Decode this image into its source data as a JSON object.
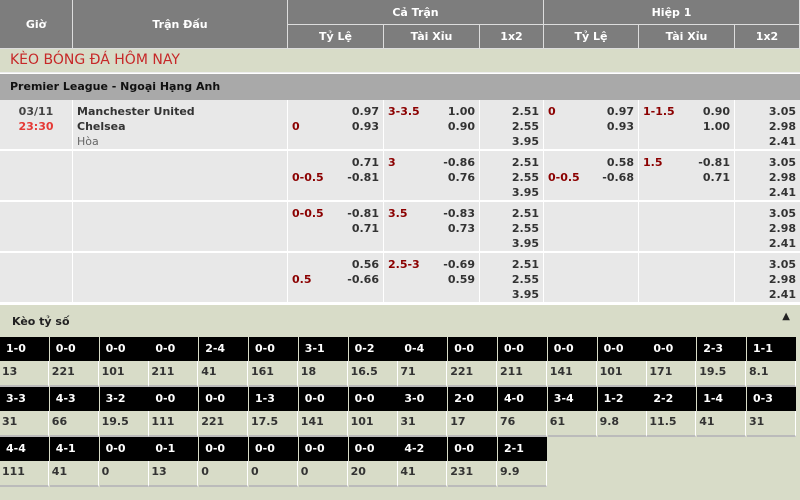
{
  "header": {
    "time": "Giờ",
    "match": "Trận Đấu",
    "full": "Cả Trận",
    "half": "Hiệp 1",
    "hdp": "Tỷ Lệ",
    "ou": "Tài Xỉu",
    "x12": "1x2"
  },
  "title": "KÈO BÓNG ĐÁ HÔM NAY",
  "league": "Premier League - Ngoại Hạng Anh",
  "match": {
    "date": "03/11",
    "time": "23:30",
    "home": "Manchester United",
    "away": "Chelsea",
    "draw": "Hòa"
  },
  "rows": [
    {
      "hdp_line": "0",
      "hdp_line_pos": 2,
      "hdp": [
        "0.97",
        "0.93"
      ],
      "ou_line": "3-3.5",
      "ou": [
        "1.00",
        "0.90"
      ],
      "x12": [
        "2.51",
        "2.55",
        "3.95"
      ],
      "h1_hdp_line": "0",
      "h1_hdp_line_pos": 1,
      "h1_hdp": [
        "0.97",
        "0.93"
      ],
      "h1_ou_line": "1-1.5",
      "h1_ou": [
        "0.90",
        "1.00"
      ],
      "h1_x12": [
        "3.05",
        "2.98",
        "2.41"
      ]
    },
    {
      "hdp_line": "0-0.5",
      "hdp_line_pos": 2,
      "hdp": [
        "0.71",
        "-0.81"
      ],
      "ou_line": "3",
      "ou": [
        "-0.86",
        "0.76"
      ],
      "x12": [
        "2.51",
        "2.55",
        "3.95"
      ],
      "h1_hdp_line": "0-0.5",
      "h1_hdp_line_pos": 2,
      "h1_hdp": [
        "0.58",
        "-0.68"
      ],
      "h1_ou_line": "1.5",
      "h1_ou": [
        "-0.81",
        "0.71"
      ],
      "h1_x12": [
        "3.05",
        "2.98",
        "2.41"
      ]
    },
    {
      "hdp_line": "0-0.5",
      "hdp_line_pos": 1,
      "hdp": [
        "-0.81",
        "0.71"
      ],
      "ou_line": "3.5",
      "ou": [
        "-0.83",
        "0.73"
      ],
      "x12": [
        "2.51",
        "2.55",
        "3.95"
      ],
      "h1_hdp_line": "",
      "h1_hdp_line_pos": 1,
      "h1_hdp": [
        "",
        ""
      ],
      "h1_ou_line": "",
      "h1_ou": [
        "",
        ""
      ],
      "h1_x12": [
        "3.05",
        "2.98",
        "2.41"
      ]
    },
    {
      "hdp_line": "0.5",
      "hdp_line_pos": 2,
      "hdp": [
        "0.56",
        "-0.66"
      ],
      "ou_line": "2.5-3",
      "ou": [
        "-0.69",
        "0.59"
      ],
      "x12": [
        "2.51",
        "2.55",
        "3.95"
      ],
      "h1_hdp_line": "",
      "h1_hdp_line_pos": 1,
      "h1_hdp": [
        "",
        ""
      ],
      "h1_ou_line": "",
      "h1_ou": [
        "",
        ""
      ],
      "h1_x12": [
        "3.05",
        "2.98",
        "2.41"
      ]
    }
  ],
  "scores_title": "Kèo tỷ số",
  "scores": [
    [
      "1-0",
      "13"
    ],
    [
      "0-0",
      "221"
    ],
    [
      "0-0",
      "101"
    ],
    [
      "0-0",
      "211"
    ],
    [
      "2-4",
      "41"
    ],
    [
      "0-0",
      "161"
    ],
    [
      "3-1",
      "18"
    ],
    [
      "0-2",
      "16.5"
    ],
    [
      "0-4",
      "71"
    ],
    [
      "0-0",
      "221"
    ],
    [
      "0-0",
      "211"
    ],
    [
      "0-0",
      "141"
    ],
    [
      "0-0",
      "101"
    ],
    [
      "0-0",
      "171"
    ],
    [
      "2-3",
      "19.5"
    ],
    [
      "1-1",
      "8.1"
    ],
    [
      "3-3",
      "31"
    ],
    [
      "4-3",
      "66"
    ],
    [
      "3-2",
      "19.5"
    ],
    [
      "0-0",
      "111"
    ],
    [
      "0-0",
      "221"
    ],
    [
      "1-3",
      "17.5"
    ],
    [
      "0-0",
      "141"
    ],
    [
      "0-0",
      "101"
    ],
    [
      "3-0",
      "31"
    ],
    [
      "2-0",
      "17"
    ],
    [
      "4-0",
      "76"
    ],
    [
      "3-4",
      "61"
    ],
    [
      "1-2",
      "9.8"
    ],
    [
      "2-2",
      "11.5"
    ],
    [
      "1-4",
      "41"
    ],
    [
      "0-3",
      "31"
    ],
    [
      "4-4",
      "111"
    ],
    [
      "4-1",
      "41"
    ],
    [
      "0-0",
      "0"
    ],
    [
      "0-1",
      "13"
    ],
    [
      "0-0",
      "0"
    ],
    [
      "0-0",
      "0"
    ],
    [
      "0-0",
      "0"
    ],
    [
      "0-0",
      "20"
    ],
    [
      "4-2",
      "41"
    ],
    [
      "0-0",
      "231"
    ],
    [
      "2-1",
      "9.9"
    ]
  ]
}
